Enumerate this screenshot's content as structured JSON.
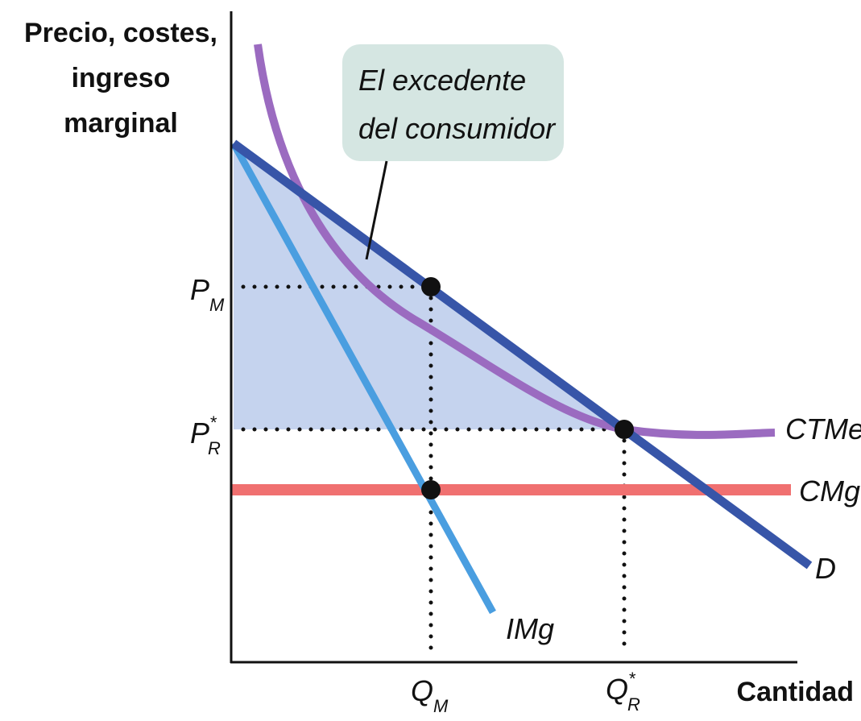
{
  "y_axis_label": [
    "Precio, costes,",
    "ingreso",
    "marginal"
  ],
  "x_axis_label": "Cantidad",
  "annotation": [
    "El excedente",
    "del consumidor"
  ],
  "curve_labels": {
    "ctme": "CTMe",
    "cmg": "CMg",
    "d": "D",
    "img": "IMg"
  },
  "price_labels": {
    "pm": {
      "main": "P",
      "sub": "M"
    },
    "pr": {
      "main": "P",
      "sup": "*",
      "sub": "R"
    }
  },
  "quantity_labels": {
    "qm": {
      "main": "Q",
      "sub": "M"
    },
    "qr": {
      "main": "Q",
      "sup": "*",
      "sub": "R"
    }
  }
}
